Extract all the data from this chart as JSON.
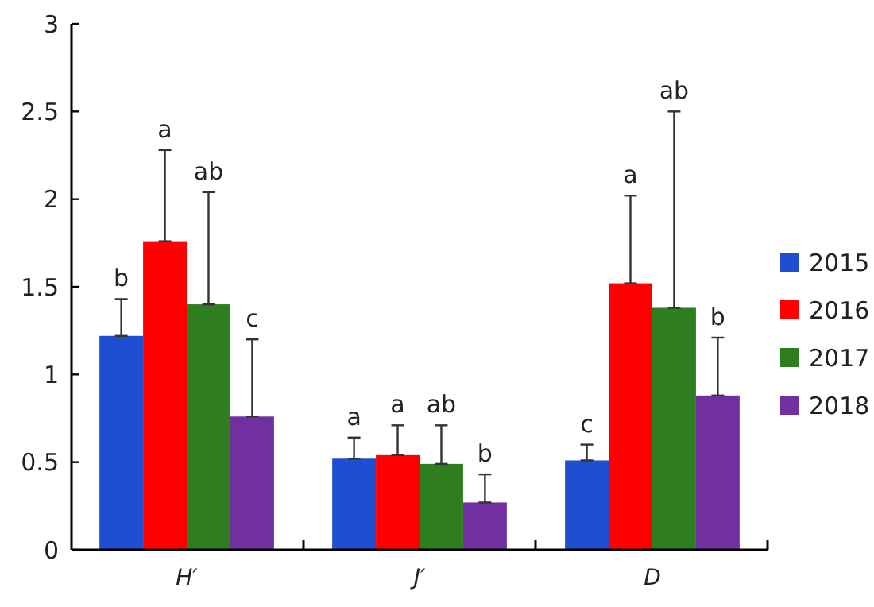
{
  "chart_data": {
    "type": "bar",
    "categories": [
      "H′",
      "J′",
      "D"
    ],
    "series": [
      {
        "name": "2015",
        "color": "#1f4fd0",
        "values": [
          1.22,
          0.52,
          0.51
        ],
        "errors": [
          [
            1.22,
            1.43
          ],
          [
            0.52,
            0.64
          ],
          [
            0.51,
            0.6
          ]
        ]
      },
      {
        "name": "2016",
        "color": "#ff0000",
        "values": [
          1.76,
          0.54,
          1.52
        ],
        "errors": [
          [
            1.76,
            2.28
          ],
          [
            0.54,
            0.71
          ],
          [
            1.52,
            2.02
          ]
        ]
      },
      {
        "name": "2017",
        "color": "#2e7d1e",
        "values": [
          1.4,
          0.49,
          1.38
        ],
        "errors": [
          [
            1.4,
            2.04
          ],
          [
            0.49,
            0.71
          ],
          [
            1.38,
            2.5
          ]
        ]
      },
      {
        "name": "2018",
        "color": "#7030a0",
        "values": [
          0.76,
          0.27,
          0.88
        ],
        "errors": [
          [
            0.76,
            1.2
          ],
          [
            0.27,
            0.43
          ],
          [
            0.88,
            1.21
          ]
        ]
      }
    ],
    "ylim": [
      0,
      3
    ],
    "yticks": [
      0,
      0.5,
      1,
      1.5,
      2,
      2.5,
      3
    ],
    "grid": false,
    "legend": "right",
    "annotations": [
      "b",
      "a",
      "ab",
      "c",
      "a",
      "a",
      "ab",
      "b",
      "c",
      "a",
      "ab",
      "b"
    ]
  }
}
